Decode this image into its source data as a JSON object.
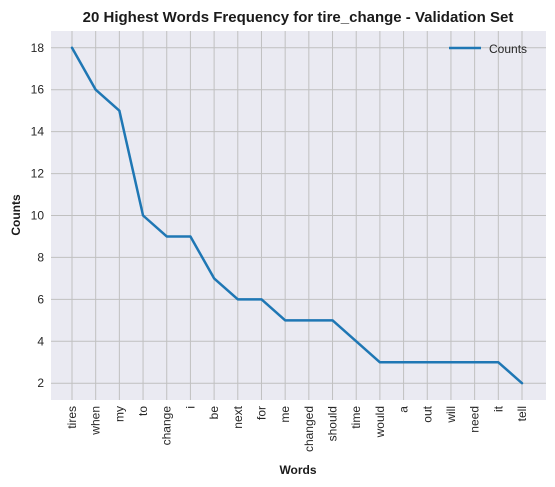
{
  "chart_data": {
    "type": "line",
    "title": "20 Highest Words Frequency for tire_change - Validation Set",
    "xlabel": "Words",
    "ylabel": "Counts",
    "categories": [
      "tires",
      "when",
      "my",
      "to",
      "change",
      "i",
      "be",
      "next",
      "for",
      "me",
      "changed",
      "should",
      "time",
      "would",
      "a",
      "out",
      "will",
      "need",
      "it",
      "tell"
    ],
    "series": [
      {
        "name": "Counts",
        "values": [
          18,
          16,
          15,
          10,
          9,
          9,
          7,
          6,
          6,
          5,
          5,
          5,
          4,
          3,
          3,
          3,
          3,
          3,
          3,
          2
        ]
      }
    ],
    "ylim": [
      1.2,
      18.8
    ],
    "yticks": [
      2,
      4,
      6,
      8,
      10,
      12,
      14,
      16,
      18
    ],
    "grid": true,
    "legend_position": "top-right",
    "colors": {
      "line": "#1f77b4",
      "plot_bg": "#eaeaf2",
      "grid": "#c0c0c0"
    }
  }
}
